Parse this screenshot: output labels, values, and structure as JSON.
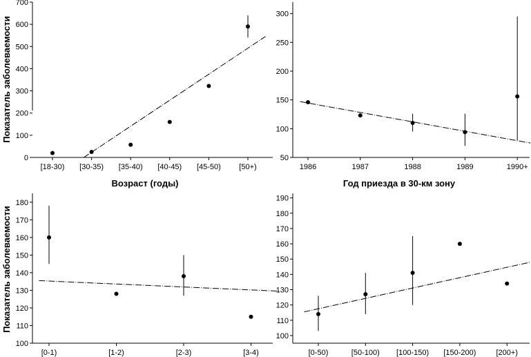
{
  "chart_data": [
    {
      "type": "scatter",
      "title": "",
      "xlabel": "Возраст (годы)",
      "ylabel": "Показатель заболеваемости",
      "categories": [
        "[18-30)",
        "[30-35)",
        "[35-40)",
        "[40-45)",
        "[45-50)",
        "[50+)"
      ],
      "values": [
        20,
        25,
        57,
        160,
        322,
        590
      ],
      "error_low": [
        null,
        null,
        null,
        null,
        null,
        540
      ],
      "error_high": [
        null,
        null,
        null,
        null,
        null,
        640
      ],
      "yticks": [
        0,
        100,
        200,
        300,
        400,
        500,
        600,
        700
      ],
      "ylim": [
        0,
        700
      ],
      "trend": {
        "x_start": 0.8,
        "y_start": 0,
        "x_end": 5.45,
        "y_end": 545
      }
    },
    {
      "type": "scatter",
      "title": "",
      "xlabel": "Год приезда в 30-км зону",
      "ylabel": "",
      "categories": [
        "1986",
        "1987",
        "1988",
        "1989",
        "1990+"
      ],
      "values": [
        146,
        123,
        110,
        94,
        156
      ],
      "error_low": [
        null,
        null,
        95,
        70,
        80
      ],
      "error_high": [
        null,
        null,
        126,
        126,
        295
      ],
      "yticks": [
        50,
        100,
        150,
        200,
        250,
        300
      ],
      "ylim": [
        50,
        320
      ],
      "trend": {
        "x_start": -0.15,
        "y_start": 147,
        "x_end": 4.25,
        "y_end": 75
      }
    },
    {
      "type": "scatter",
      "title": "",
      "xlabel": "",
      "ylabel": "Показатель заболеваемости",
      "categories": [
        "[0-1)",
        "[1-2)",
        "[2-3)",
        "[3-4)"
      ],
      "values": [
        160,
        128,
        138,
        115
      ],
      "error_low": [
        145,
        null,
        127,
        null
      ],
      "error_high": [
        178,
        null,
        150,
        null
      ],
      "yticks": [
        100,
        110,
        120,
        130,
        140,
        150,
        160,
        170,
        180
      ],
      "ylim": [
        100,
        185
      ],
      "trend": {
        "x_start": -0.15,
        "y_start": 135.5,
        "x_end": 3.42,
        "y_end": 129.5
      }
    },
    {
      "type": "scatter",
      "title": "",
      "xlabel": "",
      "ylabel": "",
      "categories": [
        "[0-50)",
        "[50-100)",
        "[100-150)",
        "[150-200)",
        "[200+)"
      ],
      "values": [
        114,
        127,
        141,
        160,
        134
      ],
      "error_low": [
        103,
        114,
        120,
        null,
        null
      ],
      "error_high": [
        126,
        141,
        165,
        null,
        null
      ],
      "yticks": [
        100,
        110,
        120,
        130,
        140,
        150,
        160,
        170,
        180,
        190
      ],
      "ylim": [
        95,
        193
      ],
      "trend": {
        "x_start": -0.3,
        "y_start": 115.5,
        "x_end": 4.5,
        "y_end": 148
      }
    }
  ]
}
